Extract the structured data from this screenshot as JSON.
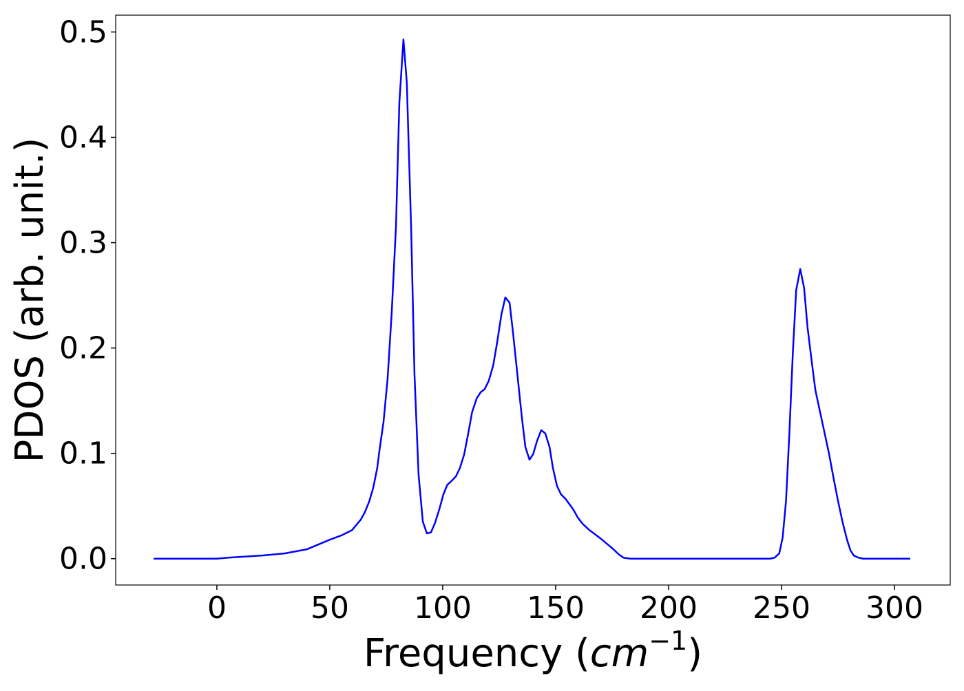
{
  "chart_data": {
    "type": "line",
    "xlabel_parts": [
      "Frequency (",
      "cm",
      "−1",
      ")"
    ],
    "ylabel": "PDOS (arb. unit.)",
    "xlim": [
      -44.8,
      324.7
    ],
    "ylim": [
      -0.025,
      0.516
    ],
    "xticks": [
      0,
      50,
      100,
      150,
      200,
      250,
      300
    ],
    "yticks": [
      {
        "value": 0,
        "label": "0.0"
      },
      0.1,
      0.2,
      0.3,
      0.4,
      0.5
    ],
    "grid": false,
    "series": [
      {
        "color": "#0000ff",
        "x": [
          -28,
          0,
          5,
          20,
          30,
          40,
          50,
          55,
          59.8,
          63.7,
          65.5,
          67.4,
          69.2,
          71,
          72,
          73.8,
          75.6,
          77.4,
          79.3,
          80.8,
          82.6,
          84.1,
          86,
          87.5,
          89.3,
          91.2,
          93,
          94.8,
          96.6,
          98.5,
          100.3,
          102,
          104,
          105.8,
          107.6,
          109.5,
          111.3,
          113,
          115,
          116.8,
          118.6,
          120.4,
          122.3,
          124,
          126,
          127.7,
          129.6,
          131,
          133,
          135,
          136.6,
          138.4,
          140,
          141.8,
          143.6,
          145.4,
          147.3,
          148.8,
          150.6,
          152.4,
          154.3,
          156,
          158,
          159.8,
          162,
          165,
          170,
          175,
          178,
          180,
          183,
          245,
          247,
          249,
          250.5,
          252,
          253.5,
          255,
          256.5,
          258.3,
          260,
          261.5,
          263.5,
          265,
          267,
          269,
          271,
          273,
          275,
          277,
          279,
          280.5,
          282,
          284,
          286,
          307
        ],
        "values": [
          0,
          0,
          0.001,
          0.003,
          0.005,
          0.009,
          0.018,
          0.022,
          0.027,
          0.037,
          0.044,
          0.054,
          0.067,
          0.086,
          0.103,
          0.13,
          0.171,
          0.233,
          0.315,
          0.433,
          0.493,
          0.452,
          0.315,
          0.175,
          0.08,
          0.035,
          0.024,
          0.025,
          0.034,
          0.047,
          0.061,
          0.07,
          0.074,
          0.078,
          0.086,
          0.099,
          0.119,
          0.139,
          0.152,
          0.158,
          0.161,
          0.169,
          0.183,
          0.204,
          0.232,
          0.248,
          0.243,
          0.217,
          0.176,
          0.135,
          0.106,
          0.094,
          0.099,
          0.112,
          0.122,
          0.119,
          0.106,
          0.086,
          0.069,
          0.061,
          0.057,
          0.052,
          0.046,
          0.039,
          0.033,
          0.027,
          0.019,
          0.01,
          0.004,
          0.001,
          0,
          0,
          0.001,
          0.005,
          0.02,
          0.055,
          0.12,
          0.195,
          0.255,
          0.275,
          0.257,
          0.22,
          0.185,
          0.16,
          0.14,
          0.12,
          0.1,
          0.077,
          0.055,
          0.035,
          0.018,
          0.008,
          0.003,
          0.001,
          0,
          0
        ]
      }
    ]
  }
}
